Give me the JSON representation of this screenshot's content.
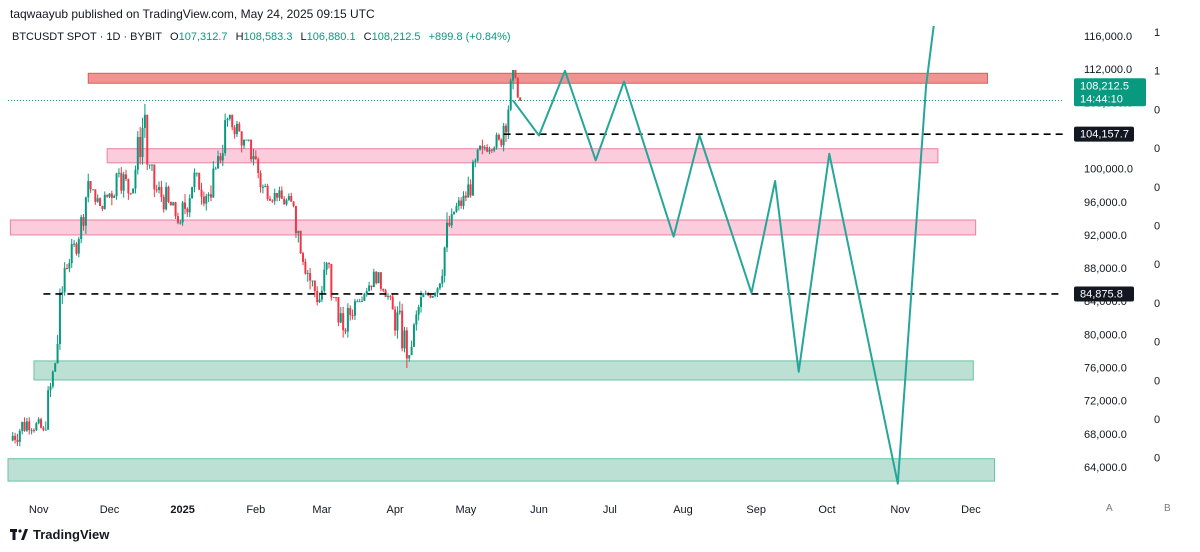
{
  "header": {
    "publisher": "taqwaayub published on TradingView.com, May 24, 2025 09:15 UTC"
  },
  "legend": {
    "symbol": "BTCUSDT SPOT · 1D · BYBIT",
    "open_label": "O",
    "open": "107,312.7",
    "high_label": "H",
    "high": "108,583.3",
    "low_label": "L",
    "low": "106,880.1",
    "close_label": "C",
    "close": "108,212.5",
    "change": "+899.8 (+0.84%)"
  },
  "brand": {
    "name": "TradingView"
  },
  "axis_buttons": {
    "a": "A",
    "b": "B"
  },
  "price_tags": {
    "last_price": "108,212.5",
    "countdown": "14:44:10",
    "line_upper": "104,157.7",
    "line_lower": "84,875.8"
  },
  "colors": {
    "up": "#089981",
    "down": "#f23645",
    "resistance": "#f08080",
    "pink_zone": "#f8bbd0",
    "support": "#a5d6c4",
    "projection": "#26a69a",
    "dashed": "#000000"
  },
  "chart_data": {
    "type": "candlestick",
    "title": "",
    "xlabel": "",
    "ylabel": "",
    "ylim": [
      61000,
      118000
    ],
    "y_ticks": [
      116000,
      112000,
      108000,
      104000,
      100000,
      96000,
      92000,
      88000,
      84000,
      80000,
      76000,
      72000,
      68000,
      64000
    ],
    "y_tick_labels": [
      "116,000.0",
      "112,000.0",
      "108,000.0",
      "104,000.0",
      "100,000.0",
      "96,000.0",
      "92,000.0",
      "88,000.0",
      "84,000.0",
      "80,000.0",
      "76,000.0",
      "72,000.0",
      "68,000.0",
      "64,000.0"
    ],
    "right_secondary_labels": [
      "1",
      "1",
      "0",
      "0",
      "0",
      "0",
      "0",
      "0",
      "0",
      "0",
      "0",
      "0"
    ],
    "x_ticks": [
      {
        "date": "2024-11-01",
        "label": "Nov"
      },
      {
        "date": "2024-12-01",
        "label": "Dec"
      },
      {
        "date": "2025-01-01",
        "label": "2025",
        "bold": true
      },
      {
        "date": "2025-02-01",
        "label": "Feb"
      },
      {
        "date": "2025-03-01",
        "label": "Mar"
      },
      {
        "date": "2025-04-01",
        "label": "Apr"
      },
      {
        "date": "2025-05-01",
        "label": "May"
      },
      {
        "date": "2025-06-01",
        "label": "Jun"
      },
      {
        "date": "2025-07-01",
        "label": "Jul"
      },
      {
        "date": "2025-08-01",
        "label": "Aug"
      },
      {
        "date": "2025-09-01",
        "label": "Sep"
      },
      {
        "date": "2025-10-01",
        "label": "Oct"
      },
      {
        "date": "2025-11-01",
        "label": "Nov"
      },
      {
        "date": "2025-12-01",
        "label": "Dec"
      }
    ],
    "price_series": {
      "name": "BTCUSDT",
      "x": [
        "2024-10-20",
        "2024-10-27",
        "2024-11-03",
        "2024-11-08",
        "2024-11-12",
        "2024-11-18",
        "2024-11-22",
        "2024-11-27",
        "2024-12-01",
        "2024-12-05",
        "2024-12-10",
        "2024-12-16",
        "2024-12-20",
        "2024-12-26",
        "2024-12-31",
        "2025-01-06",
        "2025-01-13",
        "2025-01-20",
        "2025-01-25",
        "2025-01-31",
        "2025-02-04",
        "2025-02-10",
        "2025-02-17",
        "2025-02-24",
        "2025-02-28",
        "2025-03-04",
        "2025-03-10",
        "2025-03-15",
        "2025-03-25",
        "2025-03-31",
        "2025-04-07",
        "2025-04-12",
        "2025-04-18",
        "2025-04-25",
        "2025-05-01",
        "2025-05-08",
        "2025-05-15",
        "2025-05-22",
        "2025-05-24"
      ],
      "close": [
        67500,
        69500,
        68500,
        76500,
        88000,
        91500,
        98500,
        95500,
        97000,
        99500,
        97000,
        106500,
        97500,
        96000,
        93500,
        99500,
        96500,
        106000,
        104500,
        101500,
        97800,
        96500,
        95500,
        86500,
        84200,
        88500,
        80500,
        84000,
        87500,
        83000,
        77500,
        84500,
        85000,
        94500,
        96500,
        102500,
        103500,
        111000,
        108200
      ],
      "high": [
        70500,
        73500,
        71500,
        77500,
        90000,
        93000,
        99500,
        97500,
        98500,
        103500,
        101500,
        108300,
        100500,
        99500,
        96000,
        102500,
        99500,
        109300,
        106500,
        103500,
        102500,
        98500,
        98000,
        92500,
        86500,
        92000,
        84500,
        85500,
        88500,
        85500,
        85000,
        86000,
        86000,
        95500,
        97500,
        104500,
        105000,
        111900,
        108600
      ],
      "low": [
        66000,
        66500,
        67000,
        68500,
        76500,
        87500,
        91000,
        93000,
        94500,
        94000,
        94000,
        97000,
        92500,
        92500,
        91500,
        93000,
        90000,
        100000,
        101000,
        96000,
        91500,
        94000,
        93500,
        82500,
        78500,
        80500,
        76500,
        78500,
        84000,
        81500,
        74500,
        78500,
        83500,
        84500,
        92500,
        96500,
        101000,
        101500,
        106880
      ]
    },
    "zones": [
      {
        "name": "red resistance",
        "top": 111500,
        "bottom": 110300,
        "start": "2024-11-22",
        "end": "2025-12-08"
      },
      {
        "name": "upper pink zone",
        "top": 102400,
        "bottom": 100700,
        "start": "2024-11-30",
        "end": "2025-11-17"
      },
      {
        "name": "middle pink zone",
        "top": 93800,
        "bottom": 92000,
        "start": "2024-10-20",
        "end": "2025-12-03"
      },
      {
        "name": "upper green zone",
        "top": 76800,
        "bottom": 74500,
        "start": "2024-10-30",
        "end": "2025-12-02"
      },
      {
        "name": "lower green zone",
        "top": 65000,
        "bottom": 62300,
        "start": "2024-10-19",
        "end": "2025-12-11"
      }
    ],
    "lines": [
      {
        "name": "upper dashed level",
        "value": 104157.7,
        "start": "2025-05-17",
        "end": "2026-01-09"
      },
      {
        "name": "lower dashed level",
        "value": 84875.8,
        "start": "2024-11-03",
        "end": "2026-01-09"
      }
    ],
    "projection": {
      "x": [
        "2025-05-21",
        "2025-06-01",
        "2025-06-12",
        "2025-06-25",
        "2025-07-07",
        "2025-07-28",
        "2025-08-08",
        "2025-08-30",
        "2025-09-09",
        "2025-09-19",
        "2025-10-02",
        "2025-10-31",
        "2025-11-12",
        "2025-11-16"
      ],
      "y": [
        108200,
        104000,
        111800,
        101000,
        110500,
        91800,
        104000,
        85000,
        98500,
        75500,
        101800,
        62000,
        110000,
        119000
      ]
    },
    "last_price": 108212.5,
    "current_time": "2025-05-24"
  }
}
